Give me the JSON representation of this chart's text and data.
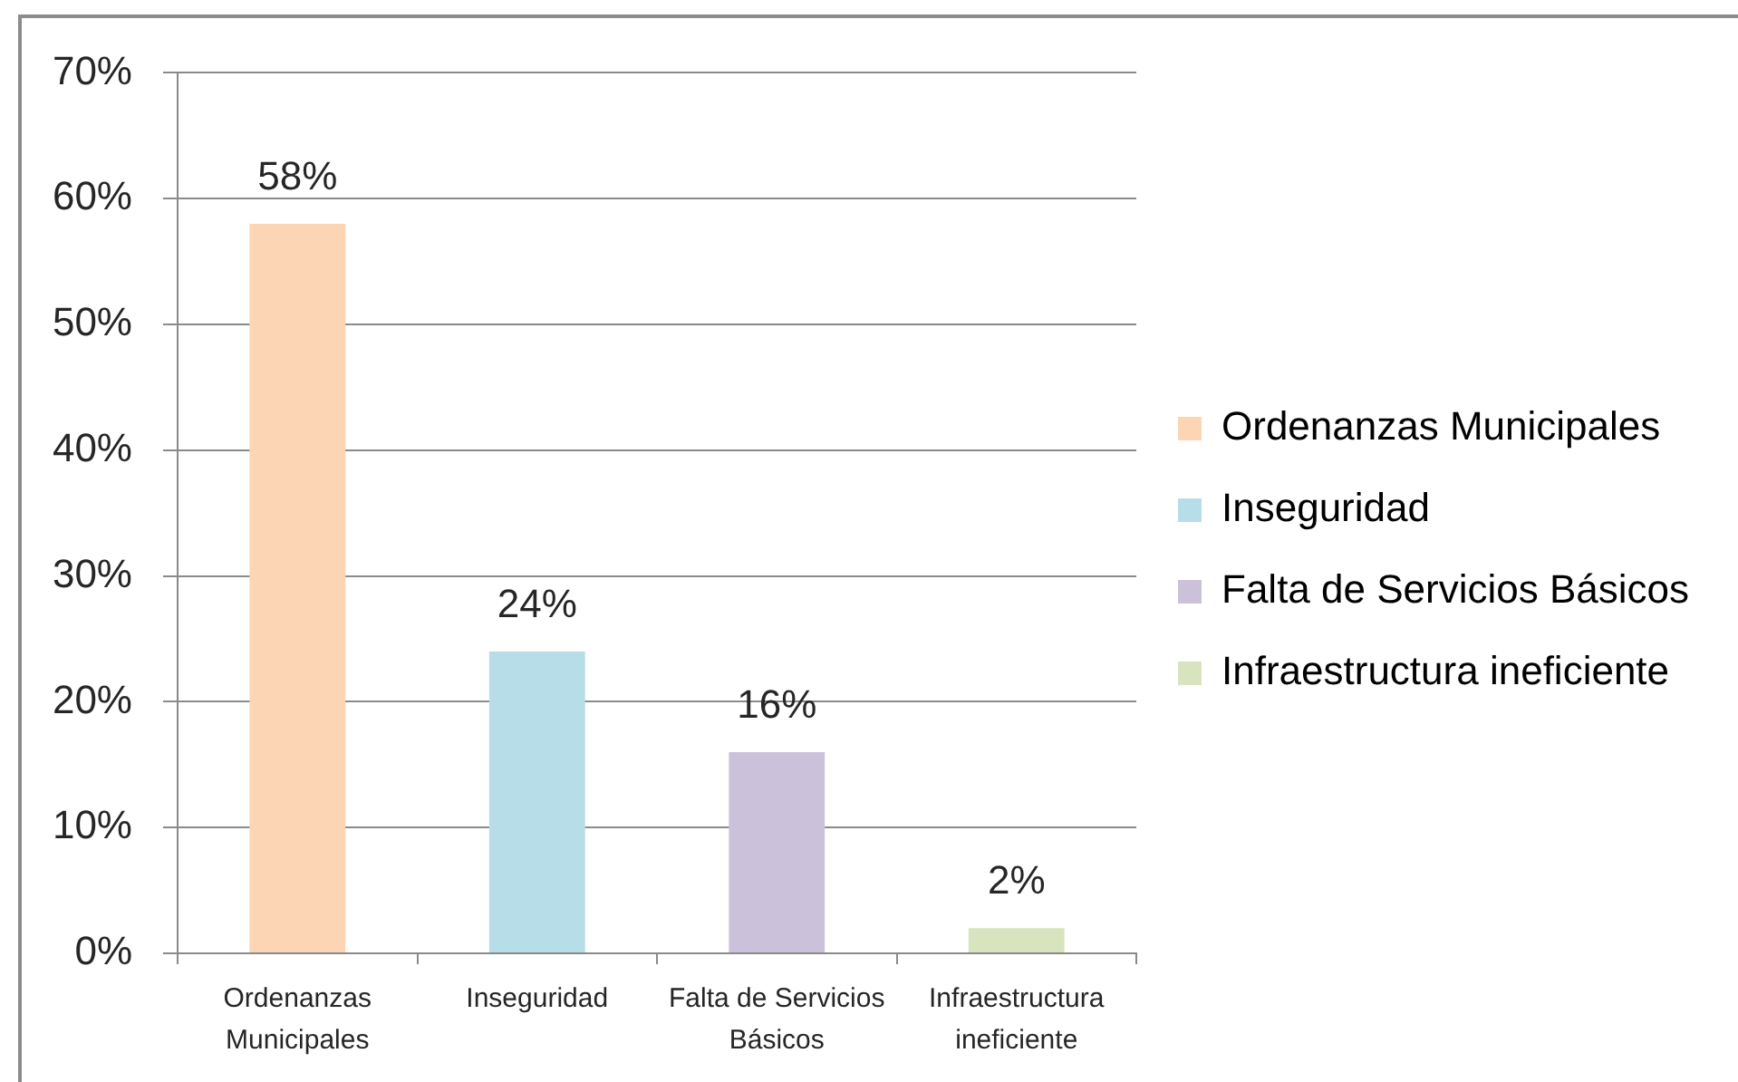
{
  "chart_data": {
    "type": "bar",
    "categories": [
      "Ordenanzas Municipales",
      "Inseguridad",
      "Falta de Servicios Básicos",
      "Infraestructura ineficiente"
    ],
    "series": [
      {
        "name": "Ordenanzas Municipales",
        "color": "#fcd5b5",
        "values": [
          58,
          null,
          null,
          null
        ],
        "value_labels": [
          "58%",
          null,
          null,
          null
        ]
      },
      {
        "name": "Inseguridad",
        "color": "#b7dee8",
        "values": [
          null,
          24,
          null,
          null
        ],
        "value_labels": [
          null,
          "24%",
          null,
          null
        ]
      },
      {
        "name": "Falta de Servicios Básicos",
        "color": "#ccc1da",
        "values": [
          null,
          null,
          16,
          null
        ],
        "value_labels": [
          null,
          null,
          "16%",
          null
        ]
      },
      {
        "name": "Infraestructura ineficiente",
        "color": "#d7e4bd",
        "values": [
          null,
          null,
          null,
          2
        ],
        "value_labels": [
          null,
          null,
          null,
          "2%"
        ]
      }
    ],
    "ylim": [
      0,
      70
    ],
    "yticks": [
      {
        "value": 0,
        "label": "0%"
      },
      {
        "value": 10,
        "label": "10%"
      },
      {
        "value": 20,
        "label": "20%"
      },
      {
        "value": 30,
        "label": "30%"
      },
      {
        "value": 40,
        "label": "40%"
      },
      {
        "value": 50,
        "label": "50%"
      },
      {
        "value": 60,
        "label": "60%"
      },
      {
        "value": 70,
        "label": "70%"
      }
    ],
    "grid": "y",
    "legend": "right"
  }
}
